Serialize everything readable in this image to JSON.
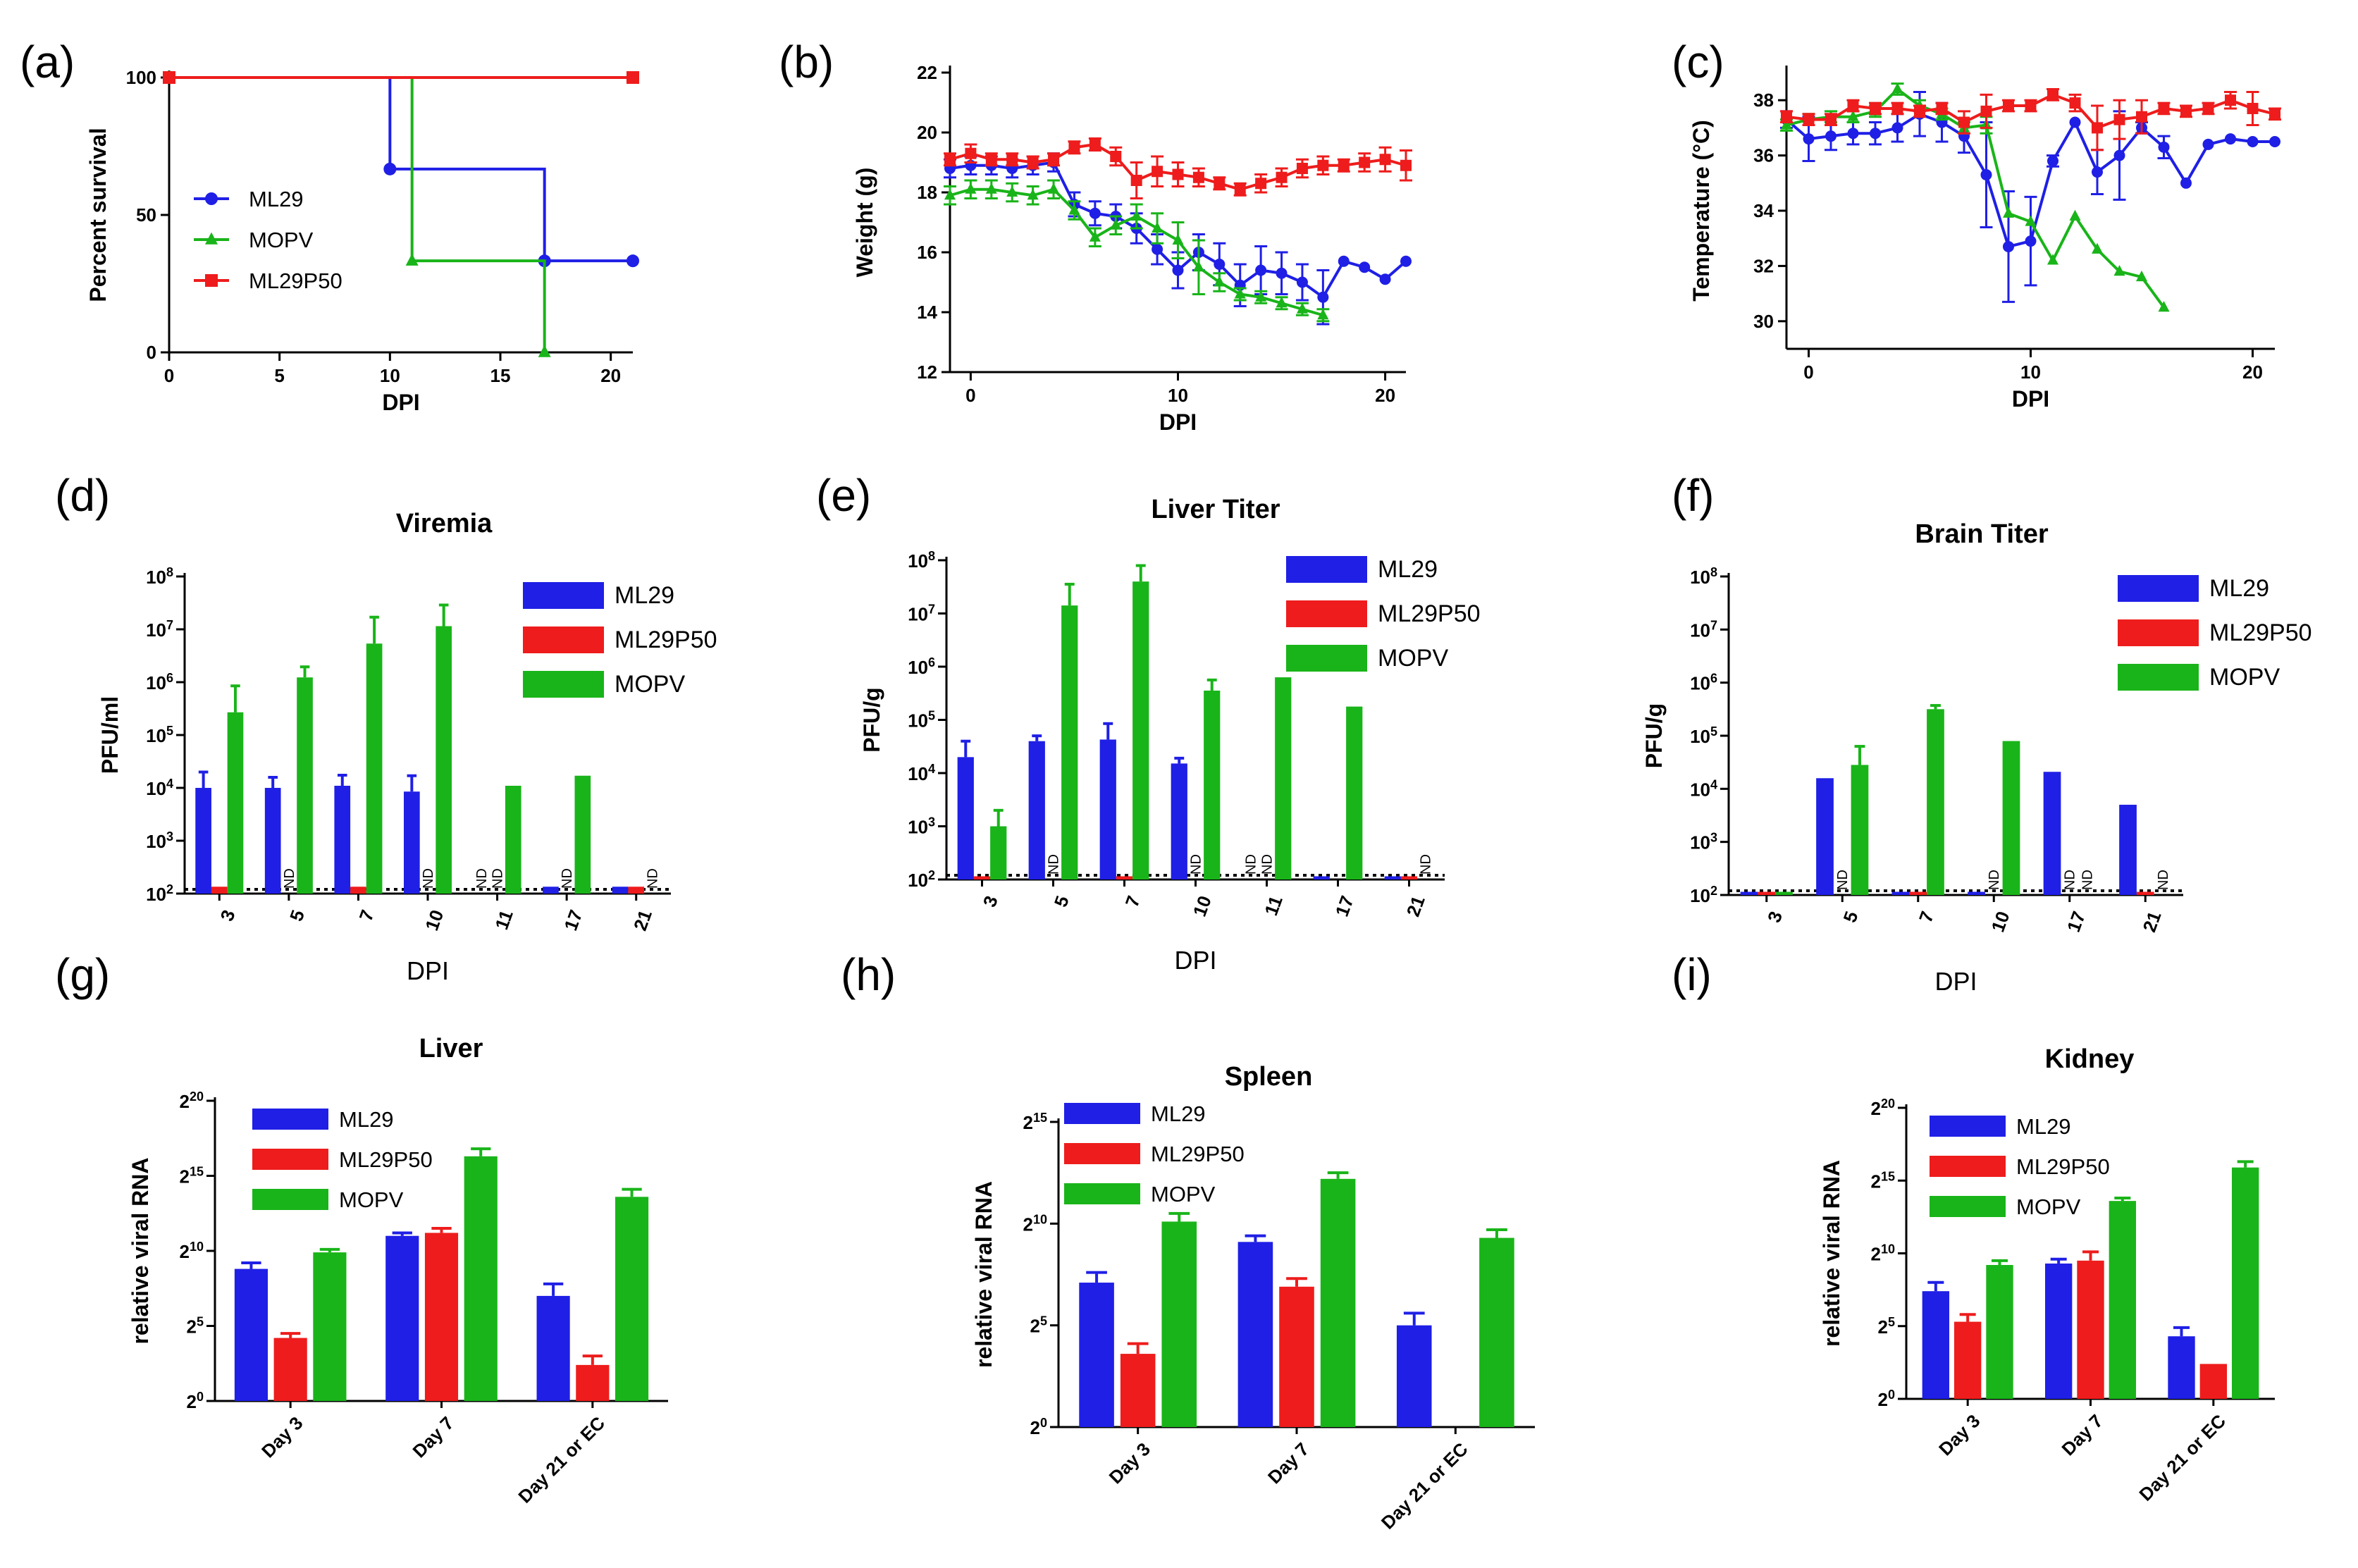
{
  "colors": {
    "ML29": "#1f1fe6",
    "ML29P50": "#ee1c1c",
    "MOPV": "#19b419"
  },
  "chart_data": [
    {
      "id": "a",
      "panel_label": "(a)",
      "type": "line",
      "title": "",
      "xlabel": "DPI",
      "ylabel": "Percent survival",
      "xlim": [
        0,
        21
      ],
      "ylim": [
        0,
        100
      ],
      "xticks": [
        0,
        5,
        10,
        15,
        20
      ],
      "yticks": [
        0,
        50,
        100
      ],
      "legend": [
        "ML29",
        "MOPV",
        "ML29P50"
      ],
      "series": [
        {
          "name": "ML29",
          "step": true,
          "x": [
            0,
            10,
            17,
            21
          ],
          "values": [
            100,
            66.7,
            33.3,
            33.3
          ]
        },
        {
          "name": "MOPV",
          "step": true,
          "x": [
            0,
            11,
            17
          ],
          "values": [
            100,
            33.3,
            0
          ]
        },
        {
          "name": "ML29P50",
          "step": true,
          "x": [
            0,
            21
          ],
          "values": [
            100,
            100
          ]
        }
      ]
    },
    {
      "id": "b",
      "panel_label": "(b)",
      "type": "line",
      "title": "",
      "xlabel": "DPI",
      "ylabel": "Weight  (g)",
      "xlim": [
        -1,
        21
      ],
      "ylim": [
        12,
        22
      ],
      "xticks": [
        0,
        10,
        20
      ],
      "yticks": [
        12,
        14,
        16,
        18,
        20,
        22
      ],
      "legend": [],
      "series": [
        {
          "name": "ML29",
          "x": [
            -1,
            0,
            1,
            2,
            3,
            4,
            5,
            6,
            7,
            8,
            9,
            10,
            11,
            12,
            13,
            14,
            15,
            16,
            17,
            18,
            19,
            20,
            21
          ],
          "values": [
            18.8,
            18.9,
            18.9,
            18.8,
            18.9,
            19.0,
            17.6,
            17.3,
            17.2,
            16.8,
            16.1,
            15.4,
            16.0,
            15.6,
            14.9,
            15.4,
            15.3,
            15.0,
            14.5,
            15.7,
            15.5,
            15.1,
            15.7
          ],
          "err": [
            0.3,
            0.3,
            0.3,
            0.3,
            0.3,
            0.3,
            0.4,
            0.4,
            0.4,
            0.5,
            0.5,
            0.6,
            0.6,
            0.7,
            0.7,
            0.8,
            0.7,
            0.6,
            0.9,
            0.1,
            0.1,
            0.1,
            0.1
          ]
        },
        {
          "name": "MOPV",
          "x": [
            -1,
            0,
            1,
            2,
            3,
            4,
            5,
            6,
            7,
            8,
            9,
            10,
            11,
            12,
            13,
            14,
            15,
            16,
            17
          ],
          "values": [
            17.9,
            18.1,
            18.1,
            18.0,
            17.9,
            18.1,
            17.4,
            16.5,
            16.9,
            17.2,
            16.8,
            16.4,
            15.5,
            15.0,
            14.6,
            14.5,
            14.3,
            14.1,
            13.9
          ],
          "err": [
            0.3,
            0.3,
            0.3,
            0.3,
            0.3,
            0.3,
            0.3,
            0.3,
            0.3,
            0.4,
            0.5,
            0.6,
            0.9,
            0.3,
            0.2,
            0.2,
            0.2,
            0.2,
            0.2
          ]
        },
        {
          "name": "ML29P50",
          "x": [
            -1,
            0,
            1,
            2,
            3,
            4,
            5,
            6,
            7,
            8,
            9,
            10,
            11,
            12,
            13,
            14,
            15,
            16,
            17,
            18,
            19,
            20,
            21
          ],
          "values": [
            19.1,
            19.3,
            19.1,
            19.1,
            19.0,
            19.1,
            19.5,
            19.6,
            19.2,
            18.4,
            18.7,
            18.6,
            18.5,
            18.3,
            18.1,
            18.3,
            18.5,
            18.8,
            18.9,
            18.9,
            19.0,
            19.1,
            18.9
          ],
          "err": [
            0.2,
            0.3,
            0.2,
            0.2,
            0.2,
            0.2,
            0.2,
            0.2,
            0.3,
            0.6,
            0.5,
            0.4,
            0.3,
            0.2,
            0.2,
            0.3,
            0.3,
            0.3,
            0.3,
            0.2,
            0.3,
            0.4,
            0.5
          ]
        }
      ]
    },
    {
      "id": "c",
      "panel_label": "(c)",
      "type": "line",
      "title": "",
      "xlabel": "DPI",
      "ylabel": "Temperature (°C)",
      "xlim": [
        -1,
        21
      ],
      "ylim": [
        29,
        39
      ],
      "xticks": [
        0,
        10,
        20
      ],
      "yticks": [
        30,
        32,
        34,
        36,
        38
      ],
      "legend": [],
      "series": [
        {
          "name": "ML29",
          "x": [
            -1,
            0,
            1,
            2,
            3,
            4,
            5,
            6,
            7,
            8,
            9,
            10,
            11,
            12,
            13,
            14,
            15,
            16,
            17,
            18,
            19,
            20,
            21
          ],
          "values": [
            37.3,
            36.6,
            36.7,
            36.8,
            36.8,
            37.0,
            37.5,
            37.2,
            36.7,
            35.3,
            32.7,
            32.9,
            35.8,
            37.2,
            35.4,
            36.0,
            37.0,
            36.3,
            35.0,
            36.4,
            36.6,
            36.5,
            36.5
          ],
          "err": [
            0.3,
            0.8,
            0.5,
            0.4,
            0.4,
            0.5,
            0.8,
            0.7,
            0.6,
            1.9,
            2.0,
            1.6,
            0.2,
            0.1,
            0.8,
            1.6,
            0.2,
            0.4,
            0.1,
            0.1,
            0.1,
            0.1,
            0.1
          ]
        },
        {
          "name": "MOPV",
          "x": [
            -1,
            0,
            1,
            2,
            3,
            4,
            5,
            6,
            7,
            8,
            9,
            10,
            11,
            12,
            13,
            14,
            15,
            16
          ],
          "values": [
            37.1,
            37.3,
            37.4,
            37.4,
            37.6,
            38.4,
            37.8,
            37.5,
            37.0,
            37.1,
            33.9,
            33.6,
            32.2,
            33.8,
            32.6,
            31.8,
            31.6,
            30.5
          ],
          "err": [
            0.2,
            0.2,
            0.2,
            0.2,
            0.2,
            0.2,
            0.2,
            0.2,
            0.2,
            0.3,
            0.1,
            0.1,
            0.1,
            0.1,
            0.1,
            0.1,
            0.1,
            0.1
          ]
        },
        {
          "name": "ML29P50",
          "x": [
            -1,
            0,
            1,
            2,
            3,
            4,
            5,
            6,
            7,
            8,
            9,
            10,
            11,
            12,
            13,
            14,
            15,
            16,
            17,
            18,
            19,
            20,
            21
          ],
          "values": [
            37.4,
            37.3,
            37.3,
            37.8,
            37.7,
            37.7,
            37.6,
            37.7,
            37.2,
            37.6,
            37.8,
            37.8,
            38.2,
            37.9,
            37.0,
            37.3,
            37.4,
            37.7,
            37.6,
            37.7,
            38.0,
            37.7,
            37.5
          ],
          "err": [
            0.2,
            0.2,
            0.2,
            0.2,
            0.2,
            0.2,
            0.2,
            0.2,
            0.4,
            0.6,
            0.2,
            0.2,
            0.2,
            0.3,
            0.8,
            0.7,
            0.6,
            0.2,
            0.2,
            0.2,
            0.3,
            0.6,
            0.2
          ]
        }
      ]
    },
    {
      "id": "d",
      "panel_label": "(d)",
      "type": "bar",
      "title": "Viremia",
      "xlabel": "DPI",
      "ylabel": "PFU/ml",
      "scale": "log10",
      "ylim_exp": [
        2,
        8
      ],
      "ytick_base": "10",
      "categories": [
        "3",
        "5",
        "7",
        "10",
        "11",
        "17",
        "21"
      ],
      "legend": [
        "ML29",
        "ML29P50",
        "MOPV"
      ],
      "detection_limit": 2.08,
      "nd_label": "ND",
      "series": [
        {
          "name": "ML29",
          "values": [
            4.0,
            4.0,
            4.04,
            3.93,
            null,
            2.13,
            2.13
          ],
          "err": [
            0.3,
            0.2,
            0.2,
            0.3,
            0,
            0,
            0
          ]
        },
        {
          "name": "ML29P50",
          "values": [
            2.13,
            null,
            2.13,
            null,
            null,
            null,
            2.13
          ],
          "err": [
            0,
            0,
            0,
            0,
            0,
            0,
            0
          ]
        },
        {
          "name": "MOPV",
          "values": [
            5.43,
            6.09,
            6.73,
            7.06,
            4.04,
            4.23,
            null
          ],
          "err": [
            0.5,
            0.2,
            0.5,
            0.4,
            0,
            0,
            0
          ]
        }
      ],
      "nd": [
        [
          1,
          1
        ],
        [
          3,
          1
        ],
        [
          4,
          0
        ],
        [
          4,
          1
        ],
        [
          5,
          1
        ],
        [
          6,
          2
        ]
      ]
    },
    {
      "id": "e",
      "panel_label": "(e)",
      "type": "bar",
      "title": "Liver  Titer",
      "xlabel": "DPI",
      "ylabel": "PFU/g",
      "scale": "log10",
      "ylim_exp": [
        2,
        8
      ],
      "ytick_base": "10",
      "categories": [
        "3",
        "5",
        "7",
        "10",
        "11",
        "17",
        "21"
      ],
      "legend": [
        "ML29",
        "ML29P50",
        "MOPV"
      ],
      "detection_limit": 2.08,
      "nd_label": "ND",
      "series": [
        {
          "name": "ML29",
          "values": [
            4.3,
            4.6,
            4.63,
            4.18,
            null,
            2.06,
            2.06
          ],
          "err": [
            0.3,
            0.1,
            0.3,
            0.1,
            0,
            0,
            0
          ]
        },
        {
          "name": "ML29P50",
          "values": [
            2.06,
            null,
            2.06,
            null,
            null,
            null,
            2.06
          ],
          "err": [
            0,
            0,
            0,
            0,
            0,
            0,
            0
          ]
        },
        {
          "name": "MOPV",
          "values": [
            3.0,
            7.15,
            7.6,
            5.55,
            5.8,
            5.25,
            null
          ],
          "err": [
            0.3,
            0.4,
            0.3,
            0.2,
            0,
            0,
            0
          ]
        }
      ],
      "nd": [
        [
          1,
          1
        ],
        [
          3,
          1
        ],
        [
          4,
          0
        ],
        [
          4,
          1
        ],
        [
          6,
          2
        ]
      ]
    },
    {
      "id": "f",
      "panel_label": "(f)",
      "type": "bar",
      "title": "Brain  Titer",
      "xlabel": "DPI",
      "ylabel": "PFU/g",
      "scale": "log10",
      "ylim_exp": [
        2,
        8
      ],
      "ytick_base": "10",
      "categories": [
        "3",
        "5",
        "7",
        "10",
        "17",
        "21"
      ],
      "legend": [
        "ML29",
        "ML29P50",
        "MOPV"
      ],
      "detection_limit": 2.08,
      "nd_label": "ND",
      "series": [
        {
          "name": "ML29",
          "values": [
            2.06,
            4.2,
            2.06,
            2.06,
            4.32,
            3.7
          ],
          "err": [
            0,
            0,
            0,
            0,
            0,
            0
          ]
        },
        {
          "name": "ML29P50",
          "values": [
            2.06,
            null,
            2.06,
            null,
            null,
            2.06
          ],
          "err": [
            0,
            0,
            0,
            0,
            0,
            0
          ]
        },
        {
          "name": "MOPV",
          "values": [
            2.06,
            4.45,
            5.5,
            4.9,
            null,
            null
          ],
          "err": [
            0,
            0.35,
            0.07,
            0,
            0,
            0
          ]
        }
      ],
      "nd": [
        [
          1,
          1
        ],
        [
          3,
          1
        ],
        [
          4,
          1
        ],
        [
          4,
          2
        ],
        [
          5,
          2
        ]
      ]
    },
    {
      "id": "g",
      "panel_label": "(g)",
      "type": "bar",
      "title": "Liver",
      "xlabel": "",
      "ylabel": "relative viral  RNA",
      "scale": "log2",
      "ylim_exp": [
        0,
        20
      ],
      "ytick_base": "2",
      "ytick_exps": [
        0,
        5,
        10,
        15,
        20
      ],
      "categories": [
        "Day 3",
        "Day 7",
        "Day 21 or EC"
      ],
      "legend": [
        "ML29",
        "ML29P50",
        "MOPV"
      ],
      "series": [
        {
          "name": "ML29",
          "values": [
            8.8,
            11.0,
            7.0
          ],
          "err": [
            0.4,
            0.2,
            0.8
          ]
        },
        {
          "name": "ML29P50",
          "values": [
            4.2,
            11.2,
            2.4
          ],
          "err": [
            0.3,
            0.3,
            0.6
          ]
        },
        {
          "name": "MOPV",
          "values": [
            9.9,
            16.3,
            13.6
          ],
          "err": [
            0.2,
            0.5,
            0.5
          ]
        }
      ]
    },
    {
      "id": "h",
      "panel_label": "(h)",
      "type": "bar",
      "title": "Spleen",
      "xlabel": "",
      "ylabel": "relative viral  RNA",
      "scale": "log2",
      "ylim_exp": [
        0,
        15
      ],
      "ytick_base": "2",
      "ytick_exps": [
        0,
        5,
        10,
        15
      ],
      "categories": [
        "Day 3",
        "Day 7",
        "Day 21 or EC"
      ],
      "legend": [
        "ML29",
        "ML29P50",
        "MOPV"
      ],
      "series": [
        {
          "name": "ML29",
          "values": [
            7.1,
            9.1,
            5.0
          ],
          "err": [
            0.5,
            0.3,
            0.6
          ]
        },
        {
          "name": "ML29P50",
          "values": [
            3.6,
            6.9,
            null
          ],
          "err": [
            0.5,
            0.4,
            0
          ]
        },
        {
          "name": "MOPV",
          "values": [
            10.1,
            12.2,
            9.3
          ],
          "err": [
            0.4,
            0.3,
            0.4
          ]
        }
      ]
    },
    {
      "id": "i",
      "panel_label": "(i)",
      "type": "bar",
      "title": "Kidney",
      "xlabel": "",
      "ylabel": "relative viral  RNA",
      "scale": "log2",
      "ylim_exp": [
        0,
        20
      ],
      "ytick_base": "2",
      "ytick_exps": [
        0,
        5,
        10,
        15,
        20
      ],
      "categories": [
        "Day 3",
        "Day 7",
        "Day 21 or EC"
      ],
      "legend": [
        "ML29",
        "ML29P50",
        "MOPV"
      ],
      "series": [
        {
          "name": "ML29",
          "values": [
            7.4,
            9.3,
            4.3
          ],
          "err": [
            0.6,
            0.3,
            0.6
          ]
        },
        {
          "name": "ML29P50",
          "values": [
            5.3,
            9.5,
            2.4
          ],
          "err": [
            0.5,
            0.6,
            0
          ]
        },
        {
          "name": "MOPV",
          "values": [
            9.2,
            13.6,
            15.9
          ],
          "err": [
            0.3,
            0.2,
            0.4
          ]
        }
      ]
    }
  ]
}
